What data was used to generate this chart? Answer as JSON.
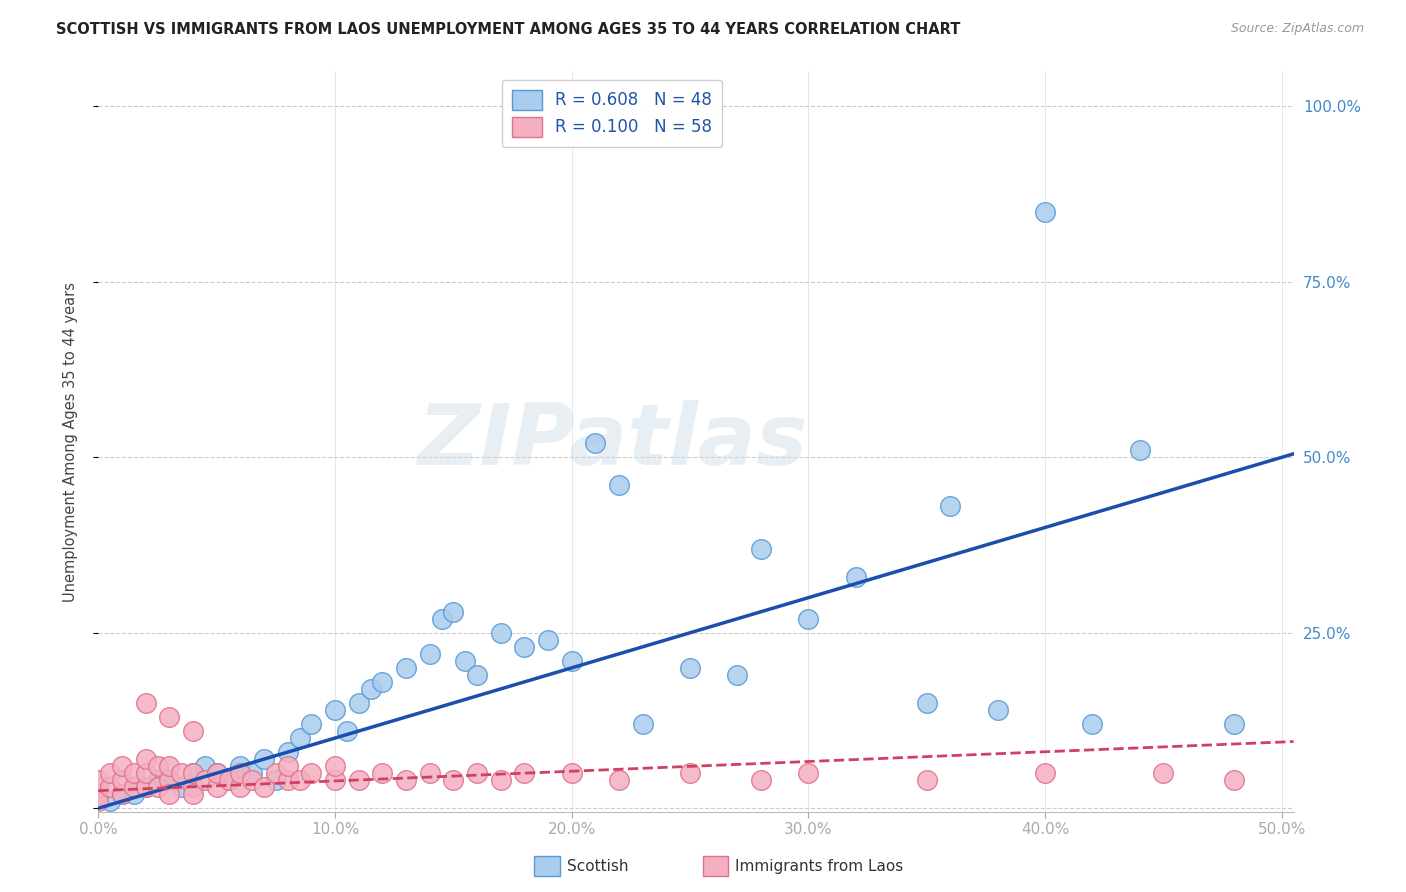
{
  "title": "SCOTTISH VS IMMIGRANTS FROM LAOS UNEMPLOYMENT AMONG AGES 35 TO 44 YEARS CORRELATION CHART",
  "source": "Source: ZipAtlas.com",
  "ylabel": "Unemployment Among Ages 35 to 44 years",
  "xlim": [
    0,
    0.505
  ],
  "ylim": [
    -0.005,
    1.05
  ],
  "xticks": [
    0.0,
    0.1,
    0.2,
    0.3,
    0.4,
    0.5
  ],
  "yticks": [
    0.0,
    0.25,
    0.5,
    0.75,
    1.0
  ],
  "xtick_labels": [
    "0.0%",
    "10.0%",
    "20.0%",
    "30.0%",
    "40.0%",
    "50.0%"
  ],
  "ytick_labels_right": [
    "",
    "25.0%",
    "50.0%",
    "75.0%",
    "100.0%"
  ],
  "scottish_color": "#aaccee",
  "scottish_edge_color": "#5599d5",
  "laos_color": "#f4b0c0",
  "laos_edge_color": "#e07090",
  "scottish_R": 0.608,
  "scottish_N": 48,
  "laos_R": 0.1,
  "laos_N": 58,
  "trend_blue": "#1a4fb0",
  "trend_pink": "#d04060",
  "watermark": "ZIPatlas",
  "scottish_label": "Scottish",
  "laos_label": "Immigrants from Laos",
  "scottish_x": [
    0.005,
    0.01,
    0.015,
    0.02,
    0.025,
    0.03,
    0.035,
    0.04,
    0.045,
    0.05,
    0.055,
    0.06,
    0.065,
    0.07,
    0.075,
    0.08,
    0.085,
    0.09,
    0.1,
    0.105,
    0.11,
    0.115,
    0.12,
    0.13,
    0.14,
    0.145,
    0.15,
    0.155,
    0.16,
    0.17,
    0.18,
    0.19,
    0.2,
    0.21,
    0.22,
    0.23,
    0.25,
    0.27,
    0.28,
    0.3,
    0.32,
    0.35,
    0.36,
    0.38,
    0.4,
    0.42,
    0.44,
    0.48
  ],
  "scottish_y": [
    0.01,
    0.02,
    0.02,
    0.03,
    0.04,
    0.04,
    0.03,
    0.05,
    0.06,
    0.05,
    0.04,
    0.06,
    0.05,
    0.07,
    0.04,
    0.08,
    0.1,
    0.12,
    0.14,
    0.11,
    0.15,
    0.17,
    0.18,
    0.2,
    0.22,
    0.27,
    0.28,
    0.21,
    0.19,
    0.25,
    0.23,
    0.24,
    0.21,
    0.52,
    0.46,
    0.12,
    0.2,
    0.19,
    0.37,
    0.27,
    0.33,
    0.15,
    0.43,
    0.14,
    0.85,
    0.12,
    0.51,
    0.12
  ],
  "laos_x": [
    0.0,
    0.0,
    0.0,
    0.0,
    0.005,
    0.005,
    0.01,
    0.01,
    0.01,
    0.015,
    0.015,
    0.02,
    0.02,
    0.02,
    0.025,
    0.025,
    0.03,
    0.03,
    0.03,
    0.035,
    0.04,
    0.04,
    0.04,
    0.045,
    0.05,
    0.05,
    0.055,
    0.06,
    0.06,
    0.065,
    0.07,
    0.075,
    0.08,
    0.08,
    0.085,
    0.09,
    0.1,
    0.1,
    0.11,
    0.12,
    0.13,
    0.14,
    0.15,
    0.16,
    0.17,
    0.18,
    0.2,
    0.22,
    0.25,
    0.28,
    0.3,
    0.35,
    0.4,
    0.45,
    0.48,
    0.02,
    0.03,
    0.04
  ],
  "laos_y": [
    0.02,
    0.03,
    0.04,
    0.01,
    0.03,
    0.05,
    0.02,
    0.04,
    0.06,
    0.03,
    0.05,
    0.03,
    0.05,
    0.07,
    0.03,
    0.06,
    0.04,
    0.06,
    0.02,
    0.05,
    0.03,
    0.05,
    0.02,
    0.04,
    0.03,
    0.05,
    0.04,
    0.03,
    0.05,
    0.04,
    0.03,
    0.05,
    0.04,
    0.06,
    0.04,
    0.05,
    0.04,
    0.06,
    0.04,
    0.05,
    0.04,
    0.05,
    0.04,
    0.05,
    0.04,
    0.05,
    0.05,
    0.04,
    0.05,
    0.04,
    0.05,
    0.04,
    0.05,
    0.05,
    0.04,
    0.15,
    0.13,
    0.11
  ],
  "blue_line": [
    0.0,
    0.0,
    0.505,
    0.505
  ],
  "pink_line": [
    0.0,
    0.025,
    0.505,
    0.095
  ]
}
